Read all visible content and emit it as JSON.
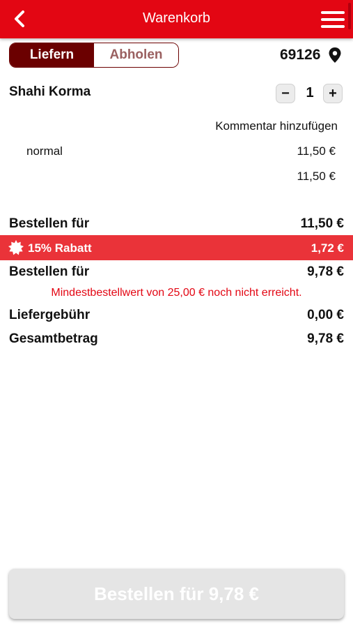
{
  "header": {
    "title": "Warenkorb",
    "back_icon": "chevron-left-icon",
    "menu_icon": "hamburger-menu-icon"
  },
  "delivery_toggle": {
    "deliver_label": "Liefern",
    "pickup_label": "Abholen",
    "selected": "Liefern"
  },
  "location": {
    "postal_code": "69126",
    "icon": "location-pin-icon"
  },
  "cart_item": {
    "name": "Shahi Korma",
    "quantity": "1",
    "decrease_label": "−",
    "increase_label": "+",
    "comment_link": "Kommentar hinzufügen",
    "variant": "normal",
    "variant_price": "11,50 €",
    "item_total": "11,50 €"
  },
  "summary": {
    "subtotal_label": "Bestellen für",
    "subtotal_value": "11,50 €",
    "discount_label": "15% Rabatt",
    "discount_value": "1,72 €",
    "discounted_label": "Bestellen für",
    "discounted_value": "9,78 €",
    "min_order_warning": "Mindestbestellwert von 25,00 € noch nicht erreicht.",
    "delivery_fee_label": "Liefergebühr",
    "delivery_fee_value": "0,00 €",
    "total_label": "Gesamtbetrag",
    "total_value": "9,78 €"
  },
  "order_button": {
    "label": "Bestellen für 9,78 €",
    "enabled": false
  },
  "colors": {
    "primary": "#e30613",
    "toggle_active": "#6b0000",
    "discount_bar": "#ea3339",
    "button_disabled": "#e5e5e5"
  }
}
